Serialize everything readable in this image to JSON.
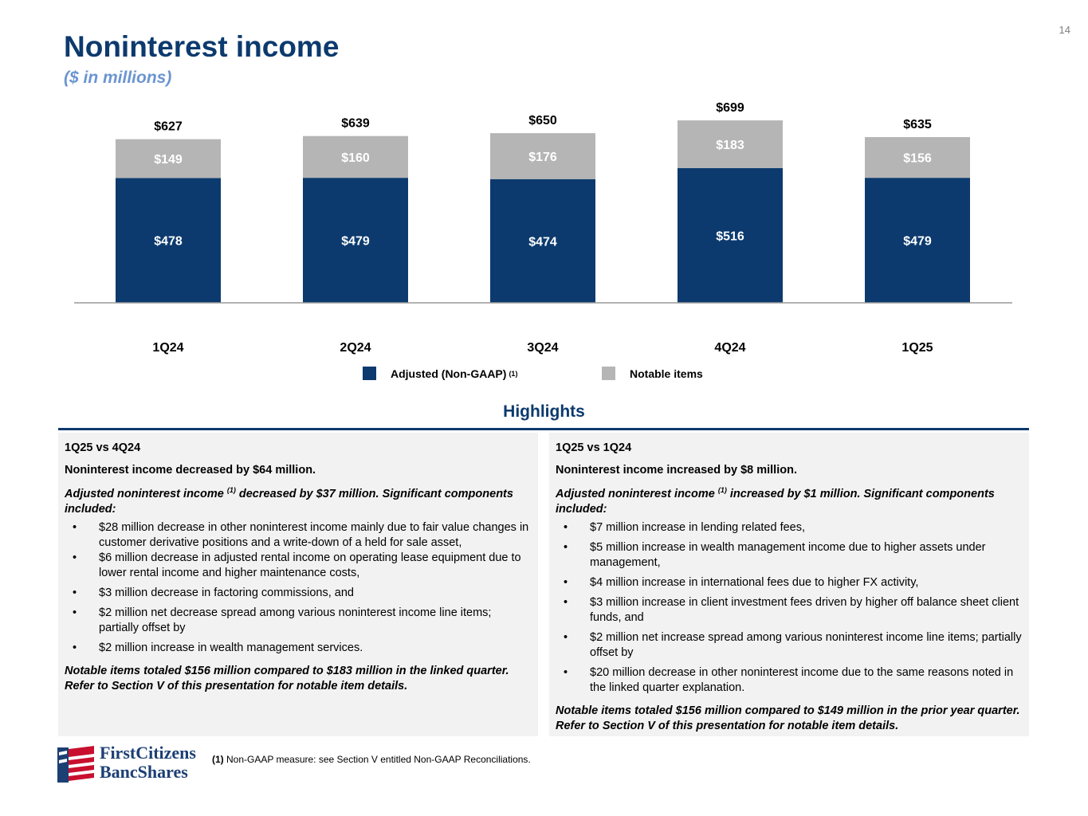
{
  "page_number": "14",
  "title": "Noninterest income",
  "subtitle": "($ in millions)",
  "colors": {
    "adjusted": "#0c3a6e",
    "notable": "#b5b5b5",
    "title": "#0c3a6e",
    "accent": "#6b95d1"
  },
  "chart_data": {
    "type": "bar",
    "stacked": true,
    "title": "Noninterest income",
    "categories": [
      "1Q24",
      "2Q24",
      "3Q24",
      "4Q24",
      "1Q25"
    ],
    "series": [
      {
        "name": "Adjusted (Non-GAAP)",
        "values": [
          478,
          479,
          474,
          516,
          479
        ],
        "labels": [
          "$478",
          "$479",
          "$474",
          "$516",
          "$479"
        ]
      },
      {
        "name": "Notable items",
        "values": [
          149,
          160,
          176,
          183,
          156
        ],
        "labels": [
          "$149",
          "$160",
          "$176",
          "$183",
          "$156"
        ]
      }
    ],
    "totals": [
      627,
      639,
      650,
      699,
      635
    ],
    "total_labels": [
      "$627",
      "$639",
      "$650",
      "$699",
      "$635"
    ],
    "legend_position": "bottom"
  },
  "legend": {
    "adjusted": "Adjusted (Non-GAAP)",
    "adjusted_sup": "(1)",
    "notable": "Notable items"
  },
  "highlights": {
    "title": "Highlights",
    "left": {
      "heading": "1Q25 vs 4Q24",
      "lead": "Noninterest income decreased by $64 million.",
      "adj_prefix": "Adjusted noninterest income",
      "adj_sup": "(1)",
      "adj_suffix": "decreased by $37 million. Significant components included:",
      "bullets": [
        "$28 million decrease in other noninterest income mainly due to fair value changes in customer derivative positions and a write-down of a held for sale asset,",
        "$6 million decrease in adjusted rental income on operating lease equipment due to lower rental income and higher maintenance costs,",
        "$3 million decrease in factoring commissions, and",
        "$2 million net decrease spread among various noninterest income line items; partially offset by",
        "$2 million increase in wealth management services."
      ],
      "notable": "Notable items totaled $156 million compared to $183 million in the linked quarter. Refer to Section V of this presentation for notable item details."
    },
    "right": {
      "heading": "1Q25 vs 1Q24",
      "lead": "Noninterest income increased by $8 million.",
      "adj_prefix": "Adjusted noninterest income",
      "adj_sup": "(1)",
      "adj_suffix": "increased by $1 million. Significant components included:",
      "bullets": [
        "$7 million increase in lending related fees,",
        "$5 million increase in wealth management income due to higher assets under management,",
        "$4 million increase in international fees due to higher FX activity,",
        "$3 million increase in client investment fees driven by higher off balance sheet client funds, and",
        "$2 million net increase spread among various noninterest income line items; partially offset by",
        "$20 million decrease in other noninterest income due to the same reasons noted in the linked quarter explanation."
      ],
      "notable": "Notable items totaled $156 million compared to $149 million in the prior year quarter. Refer to Section V of this presentation for notable item details."
    }
  },
  "logo": {
    "line1": "FirstCitizens",
    "line2": "BancShares"
  },
  "footnote": {
    "marker": "(1)",
    "text": "Non-GAAP measure: see Section V entitled Non-GAAP Reconciliations."
  }
}
